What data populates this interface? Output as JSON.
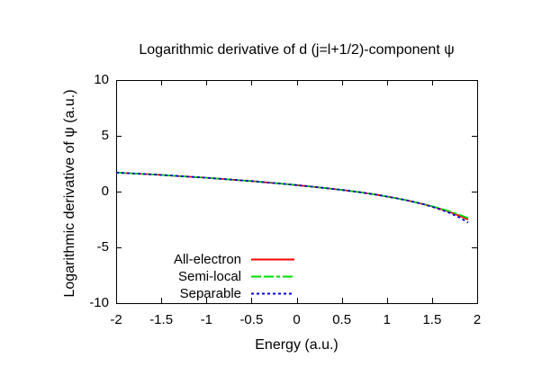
{
  "window": {
    "background": "#ffffff",
    "foreground": "#000000"
  },
  "chart_data": {
    "type": "line",
    "title": "Logarithmic derivative of d (j=l+1/2)-component ψ",
    "xlabel": "Energy (a.u.)",
    "ylabel": "Logarithmic derivative of ψ (a.u.)",
    "xlim": [
      -2,
      2
    ],
    "ylim": [
      -10,
      10
    ],
    "grid": false,
    "legend_position": "inside-bottom-center",
    "axis_color": "#000000",
    "x_ticks": [
      {
        "value": -2,
        "label": "-2"
      },
      {
        "value": -1.5,
        "label": "-1.5"
      },
      {
        "value": -1,
        "label": "-1"
      },
      {
        "value": -0.5,
        "label": "-0.5"
      },
      {
        "value": 0,
        "label": "0"
      },
      {
        "value": 0.5,
        "label": "0.5"
      },
      {
        "value": 1,
        "label": "1"
      },
      {
        "value": 1.5,
        "label": "1.5"
      },
      {
        "value": 2,
        "label": "2"
      }
    ],
    "y_ticks": [
      {
        "value": 10,
        "label": "10"
      },
      {
        "value": 5,
        "label": "5"
      },
      {
        "value": 0,
        "label": "0"
      },
      {
        "value": -5,
        "label": "-5"
      },
      {
        "value": -10,
        "label": "-10"
      }
    ],
    "x": [
      -2,
      -1.9,
      -1.8,
      -1.7,
      -1.6,
      -1.5,
      -1.4,
      -1.3,
      -1.2,
      -1.1,
      -1,
      -0.9,
      -0.8,
      -0.7,
      -0.6,
      -0.5,
      -0.4,
      -0.3,
      -0.2,
      -0.1,
      0,
      0.1,
      0.2,
      0.3,
      0.4,
      0.5,
      0.6,
      0.7,
      0.8,
      0.9,
      1,
      1.1,
      1.2,
      1.3,
      1.4,
      1.5,
      1.6,
      1.7,
      1.8,
      1.9
    ],
    "series": [
      {
        "name": "All-electron",
        "color": "#ff0000",
        "dash": "",
        "values": [
          1.7,
          1.66,
          1.62,
          1.58,
          1.54,
          1.49,
          1.44,
          1.39,
          1.34,
          1.29,
          1.24,
          1.18,
          1.12,
          1.06,
          1.0,
          0.94,
          0.87,
          0.8,
          0.73,
          0.66,
          0.58,
          0.5,
          0.42,
          0.33,
          0.24,
          0.15,
          0.05,
          -0.06,
          -0.18,
          -0.3,
          -0.44,
          -0.59,
          -0.75,
          -0.93,
          -1.12,
          -1.33,
          -1.57,
          -1.84,
          -2.15,
          -2.52
        ]
      },
      {
        "name": "Semi-local",
        "color": "#00dd00",
        "dash": "11 3 11 3 4 3",
        "values": [
          1.7,
          1.66,
          1.62,
          1.58,
          1.54,
          1.49,
          1.44,
          1.39,
          1.34,
          1.29,
          1.24,
          1.18,
          1.12,
          1.06,
          1.0,
          0.94,
          0.87,
          0.8,
          0.73,
          0.66,
          0.58,
          0.5,
          0.42,
          0.33,
          0.24,
          0.15,
          0.05,
          -0.06,
          -0.18,
          -0.3,
          -0.44,
          -0.59,
          -0.75,
          -0.93,
          -1.12,
          -1.31,
          -1.53,
          -1.78,
          -2.06,
          -2.38
        ]
      },
      {
        "name": "Separable",
        "color": "#0000dd",
        "dash": "3 3",
        "values": [
          1.7,
          1.66,
          1.62,
          1.58,
          1.54,
          1.49,
          1.44,
          1.39,
          1.34,
          1.29,
          1.24,
          1.18,
          1.12,
          1.06,
          1.0,
          0.94,
          0.87,
          0.8,
          0.73,
          0.66,
          0.58,
          0.5,
          0.42,
          0.33,
          0.24,
          0.15,
          0.05,
          -0.06,
          -0.18,
          -0.3,
          -0.44,
          -0.59,
          -0.75,
          -0.93,
          -1.12,
          -1.36,
          -1.62,
          -1.93,
          -2.3,
          -2.78
        ]
      }
    ]
  }
}
